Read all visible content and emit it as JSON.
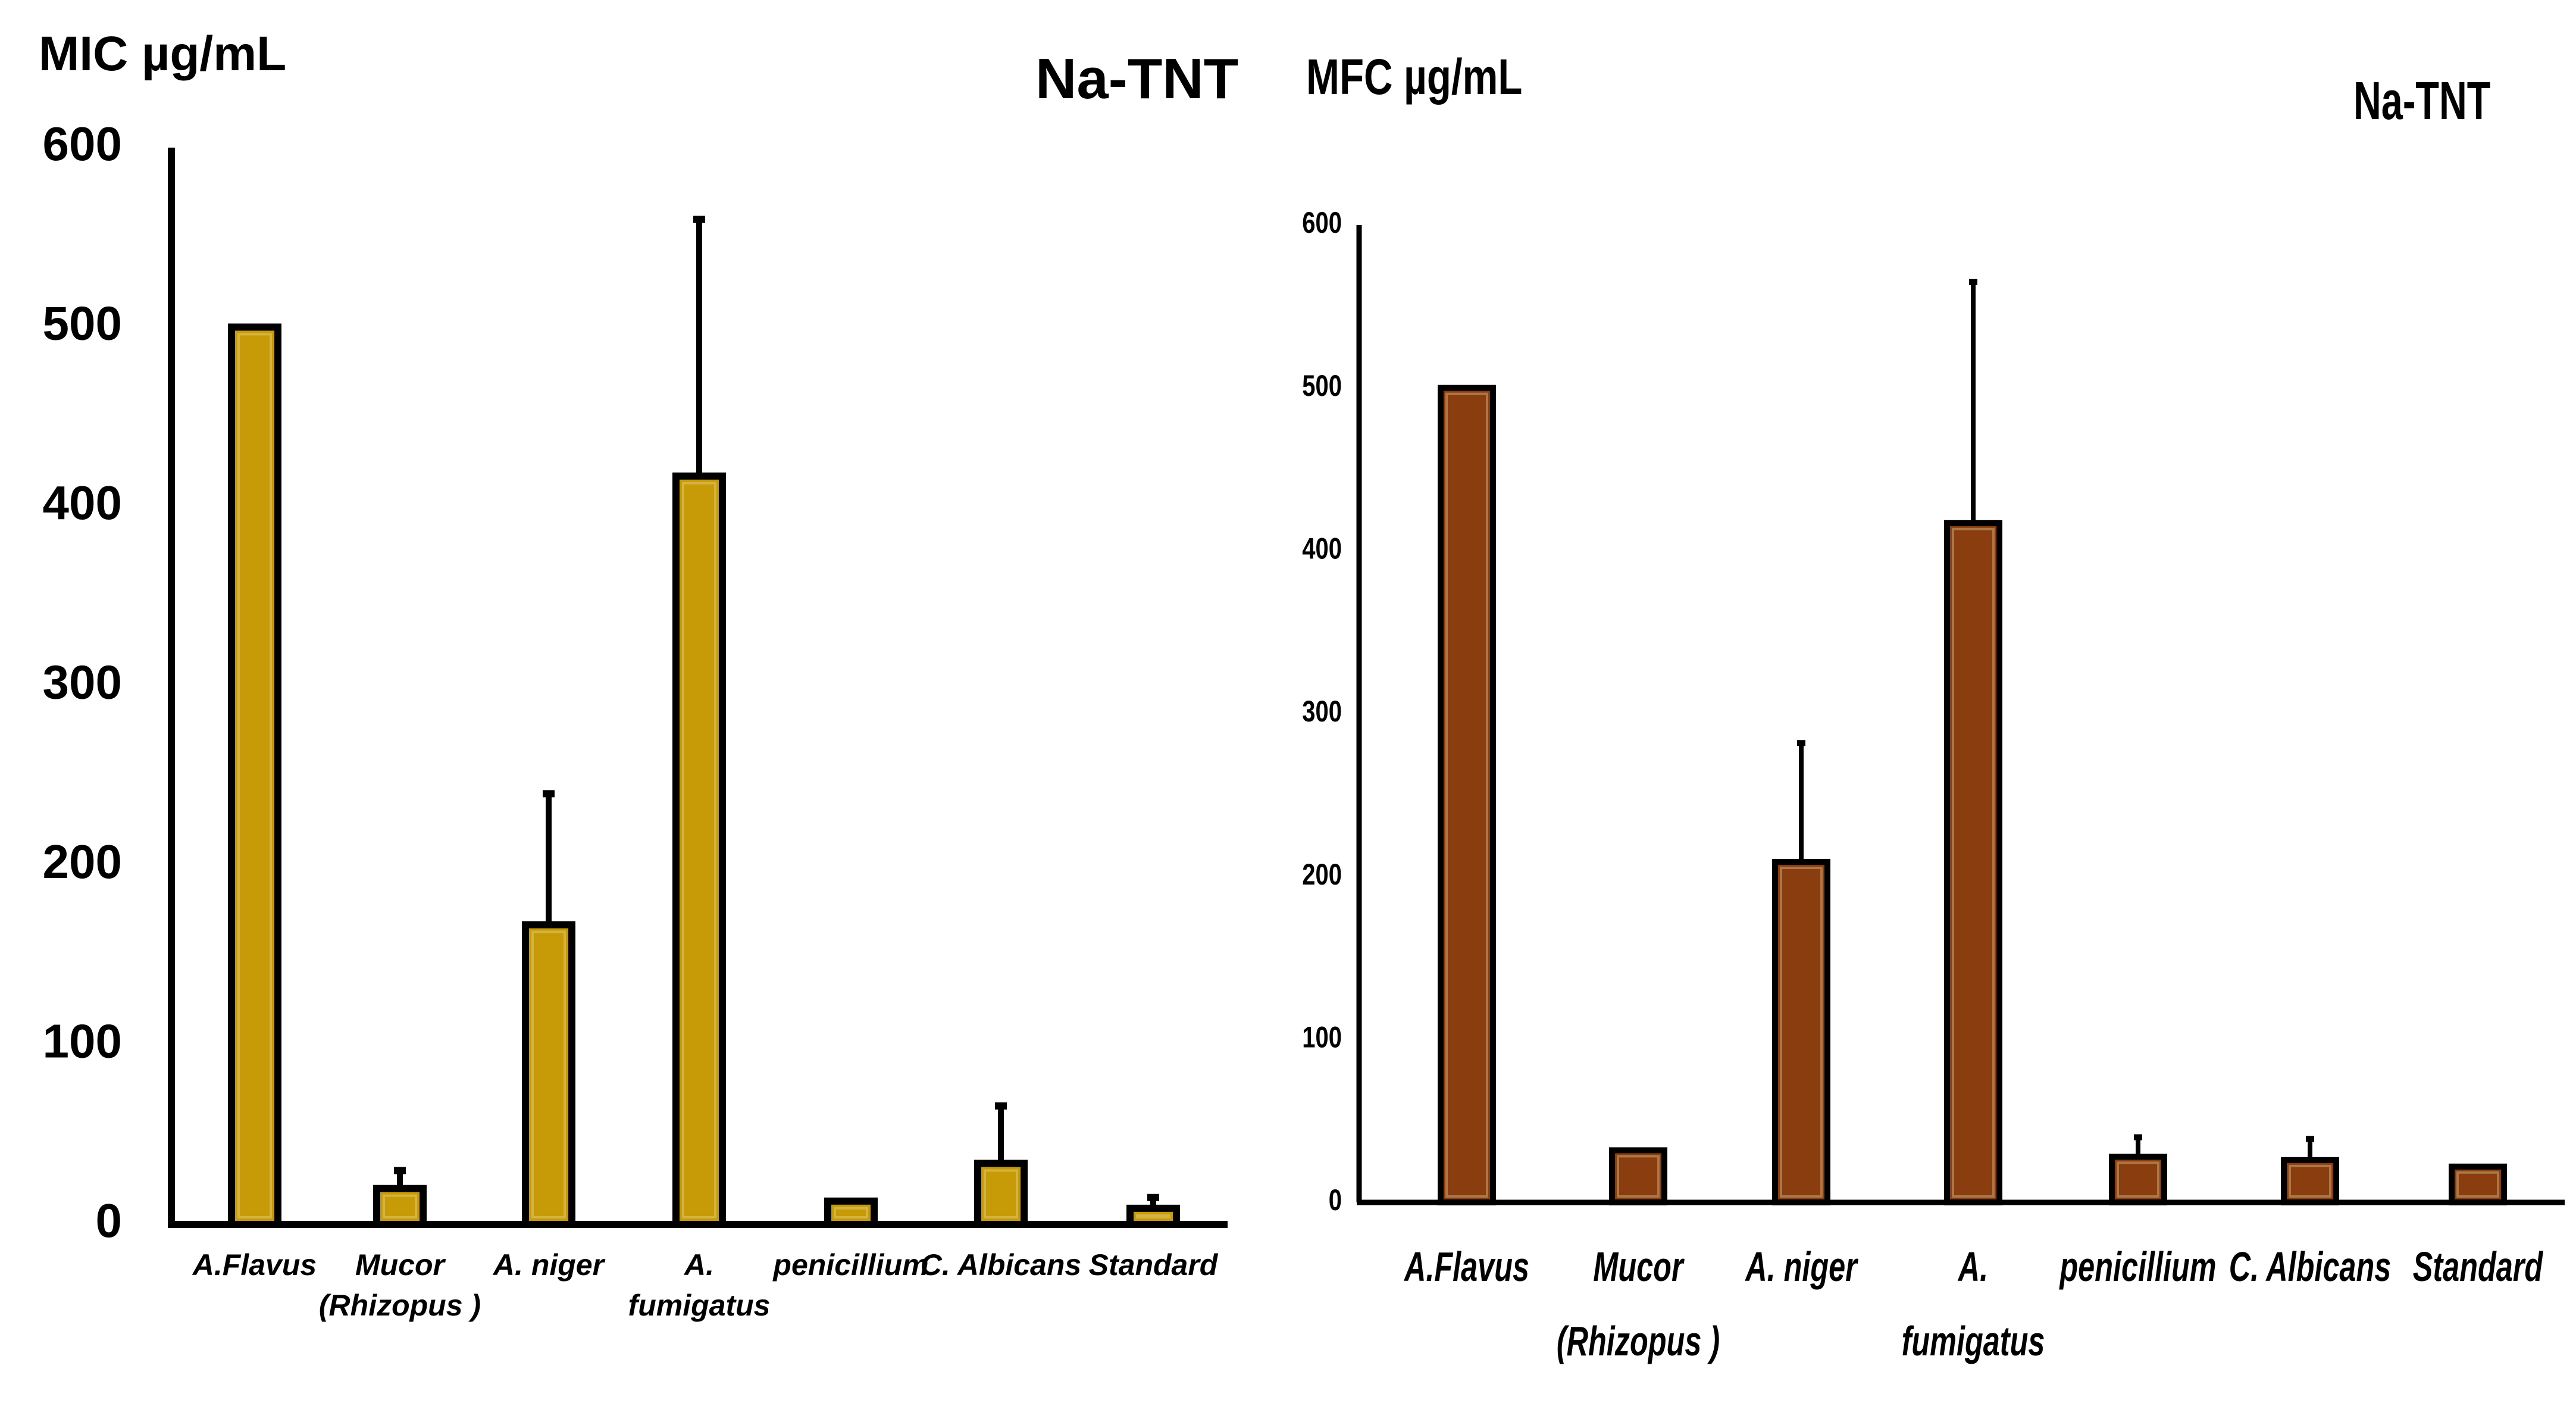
{
  "colors": {
    "mic_bar": "#C79A08",
    "mfc_bar": "#8A3E10",
    "bar_outline": "#000000"
  },
  "chart_data": [
    {
      "id": "mic",
      "type": "bar",
      "ylabel": "MIC  µg/mL",
      "title": "Na-TNT",
      "ylim": [
        0,
        600
      ],
      "yticks": [
        0,
        100,
        200,
        300,
        400,
        500,
        600
      ],
      "categories": [
        [
          "A.Flavus"
        ],
        [
          "Mucor",
          "(Rhizopus )"
        ],
        [
          "A. niger"
        ],
        [
          "A.",
          "fumigatus"
        ],
        [
          "penicillium"
        ],
        [
          "C. Albicans"
        ],
        [
          "Standard"
        ]
      ],
      "values": [
        500,
        20,
        167,
        417,
        13,
        34,
        9
      ],
      "error_upper": [
        500,
        30,
        240,
        560,
        13,
        66,
        15
      ]
    },
    {
      "id": "mfc",
      "type": "bar",
      "ylabel": "MFC  µg/mL",
      "title": "Na-TNT",
      "ylim": [
        0,
        600
      ],
      "yticks": [
        0,
        100,
        200,
        300,
        400,
        500,
        600
      ],
      "categories": [
        [
          "A.Flavus"
        ],
        [
          "Mucor",
          "(Rhizopus )"
        ],
        [
          "A. niger"
        ],
        [
          "A.",
          "fumigatus"
        ],
        [
          "penicillium"
        ],
        [
          "C. Albicans"
        ],
        [
          "Standard"
        ]
      ],
      "values": [
        500,
        32,
        209,
        417,
        28,
        26,
        22
      ],
      "error_upper": [
        500,
        32,
        282,
        565,
        40,
        39,
        22
      ]
    }
  ]
}
